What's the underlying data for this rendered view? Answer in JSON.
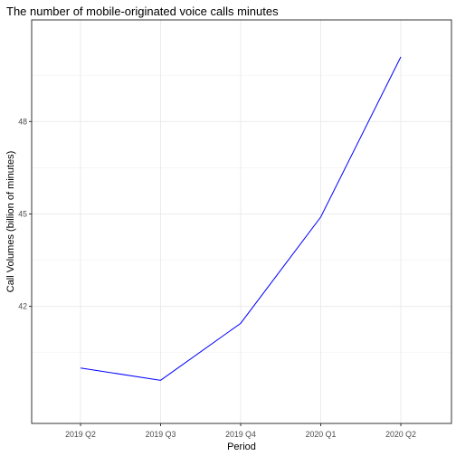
{
  "chart_data": {
    "type": "line",
    "title": "The number of mobile-originated voice calls minutes",
    "xlabel": "Period",
    "ylabel": "Call Volumes (billion of minutes)",
    "categories": [
      "2019 Q2",
      "2019 Q3",
      "2019 Q4",
      "2020 Q1",
      "2020 Q2"
    ],
    "series": [
      {
        "values": [
          40.0,
          39.6,
          41.45,
          44.9,
          50.1
        ],
        "color": "#0000ff"
      }
    ],
    "yticks": [
      42,
      45,
      48
    ],
    "ylim": [
      38.2,
      51.3
    ],
    "grid": true,
    "theme": "bw"
  }
}
